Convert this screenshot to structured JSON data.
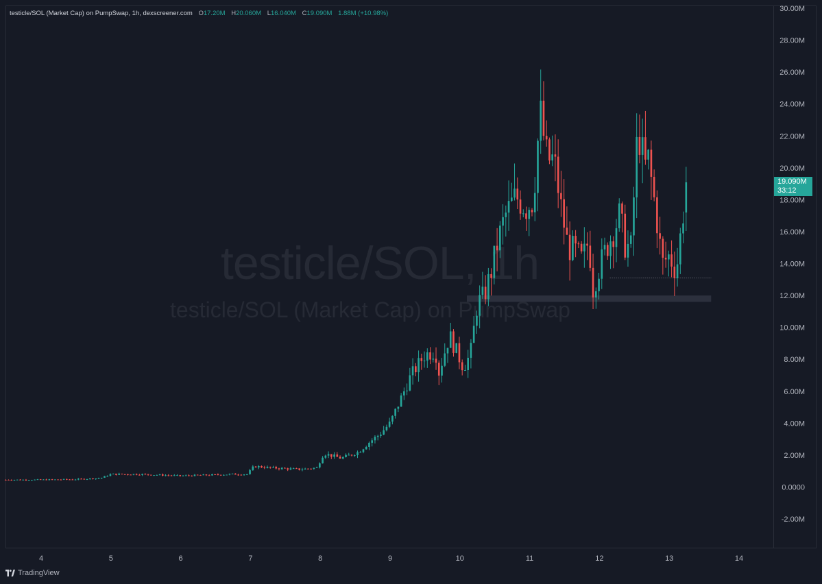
{
  "header": {
    "symbol": "testicle/SOL (Market Cap) on PumpSwap, 1h, dexscreener.com",
    "o_label": "O",
    "o_value": "17.20M",
    "h_label": "H",
    "h_value": "20.060M",
    "l_label": "L",
    "l_value": "16.040M",
    "c_label": "C",
    "c_value": "19.090M",
    "change": "1.88M (+10.98%)"
  },
  "watermark": {
    "line1": "testicle/SOL, 1h",
    "line2": "testicle/SOL (Market Cap) on PumpSwap"
  },
  "price_tag": {
    "price": "19.090M",
    "countdown": "33:12"
  },
  "footer": {
    "brand": "TradingView",
    "logo_icon": "tradingview-logo-icon"
  },
  "colors": {
    "background": "#161a25",
    "up": "#26a69a",
    "down": "#ef5350",
    "text": "#b2b5be",
    "grid_border": "#2a2e39"
  },
  "chart_data": {
    "type": "candlestick",
    "title": "testicle/SOL (Market Cap) on PumpSwap, 1h, dexscreener.com",
    "y_unit": "USD market cap (millions)",
    "ylim": [
      -3,
      30
    ],
    "y_ticks": [
      "30.00M",
      "28.00M",
      "26.00M",
      "24.00M",
      "22.00M",
      "20.00M",
      "18.00M",
      "16.00M",
      "14.00M",
      "12.00M",
      "10.00M",
      "8.00M",
      "6.00M",
      "4.00M",
      "2.00M",
      "0.0000",
      "-2.00M"
    ],
    "y_tick_values": [
      30,
      28,
      26,
      24,
      22,
      20,
      18,
      16,
      14,
      12,
      10,
      8,
      6,
      4,
      2,
      0,
      -2
    ],
    "x_ticks": [
      "4",
      "5",
      "6",
      "7",
      "8",
      "9",
      "10",
      "11",
      "12",
      "13",
      "14"
    ],
    "xlim": [
      3.5,
      14.5
    ],
    "grid": false,
    "support_zone": {
      "x_start": 10.1,
      "x_end": 13.6,
      "low": 11.6,
      "high": 12.0
    },
    "dotted_level": {
      "x_start": 12.15,
      "x_end": 13.6,
      "value": 13.1
    },
    "ohlc_key_points": [
      [
        3.45,
        0.45
      ],
      [
        4.0,
        0.45
      ],
      [
        4.5,
        0.48
      ],
      [
        4.85,
        0.55
      ],
      [
        5.0,
        0.8
      ],
      [
        5.4,
        0.8
      ],
      [
        5.7,
        0.75
      ],
      [
        6.0,
        0.7
      ],
      [
        6.4,
        0.75
      ],
      [
        6.75,
        0.8
      ],
      [
        6.95,
        0.8
      ],
      [
        7.05,
        1.3
      ],
      [
        7.3,
        1.2
      ],
      [
        7.7,
        1.1
      ],
      [
        7.95,
        1.2
      ],
      [
        8.05,
        2.1
      ],
      [
        8.3,
        1.8
      ],
      [
        8.55,
        2.2
      ],
      [
        8.7,
        2.8
      ],
      [
        8.85,
        3.3
      ],
      [
        9.0,
        4.0
      ],
      [
        9.15,
        5.5
      ],
      [
        9.3,
        7.0
      ],
      [
        9.5,
        8.3
      ],
      [
        9.65,
        8.5
      ],
      [
        9.7,
        7.2
      ],
      [
        9.85,
        9.5
      ],
      [
        9.95,
        8.5
      ],
      [
        10.05,
        7.5
      ],
      [
        10.15,
        8.3
      ],
      [
        10.25,
        11.5
      ],
      [
        10.35,
        12.0
      ],
      [
        10.45,
        13.5
      ],
      [
        10.55,
        15.5
      ],
      [
        10.65,
        17.0
      ],
      [
        10.8,
        18.2
      ],
      [
        10.95,
        17.5
      ],
      [
        11.05,
        18.0
      ],
      [
        11.15,
        23.5
      ],
      [
        11.25,
        20.5
      ],
      [
        11.35,
        20.5
      ],
      [
        11.45,
        17.5
      ],
      [
        11.55,
        15.0
      ],
      [
        11.65,
        14.8
      ],
      [
        11.75,
        14.2
      ],
      [
        11.85,
        15.5
      ],
      [
        11.9,
        12.3
      ],
      [
        12.0,
        13.8
      ],
      [
        12.1,
        15.0
      ],
      [
        12.2,
        16.0
      ],
      [
        12.3,
        17.2
      ],
      [
        12.35,
        15.2
      ],
      [
        12.45,
        15.0
      ],
      [
        12.55,
        22.5
      ],
      [
        12.65,
        20.0
      ],
      [
        12.7,
        20.5
      ],
      [
        12.8,
        17.5
      ],
      [
        12.9,
        14.0
      ],
      [
        13.0,
        14.5
      ],
      [
        13.1,
        13.5
      ],
      [
        13.2,
        17.2
      ],
      [
        13.25,
        19.09
      ]
    ],
    "last_ohlc": {
      "open": 17.2,
      "high": 20.06,
      "low": 16.04,
      "close": 19.09
    }
  }
}
